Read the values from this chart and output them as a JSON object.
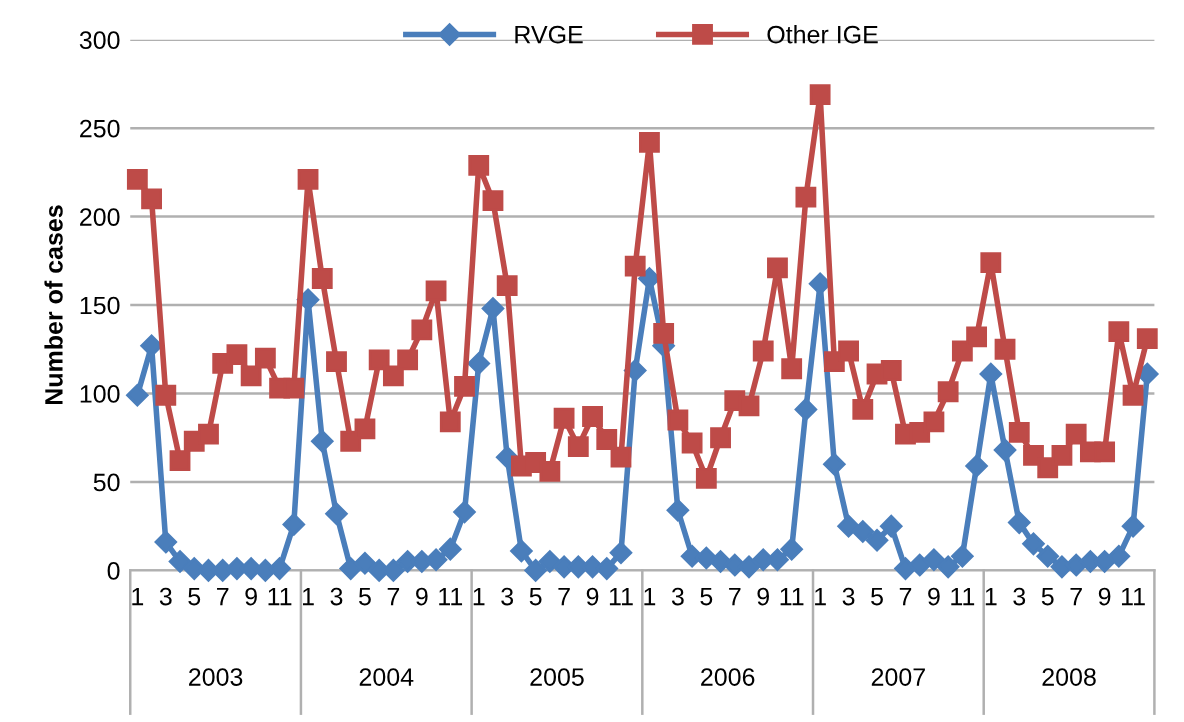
{
  "chart_data": {
    "type": "line",
    "ylabel": "Number of cases",
    "categories": [
      "1",
      null,
      "3",
      null,
      "5",
      null,
      "7",
      null,
      "9",
      null,
      "11",
      null,
      "1",
      null,
      "3",
      null,
      "5",
      null,
      "7",
      null,
      "9",
      null,
      "11",
      null,
      "1",
      null,
      "3",
      null,
      "5",
      null,
      "7",
      null,
      "9",
      null,
      "11",
      null,
      "1",
      null,
      "3",
      null,
      "5",
      null,
      "7",
      null,
      "9",
      null,
      "11",
      null,
      "1",
      null,
      "3",
      null,
      "5",
      null,
      "7",
      null,
      "9",
      null,
      "11",
      null,
      "1",
      null,
      "3",
      null,
      "5",
      null,
      "7",
      null,
      "9",
      null,
      "11",
      null
    ],
    "annotations": [
      "2003",
      "2004",
      "2005",
      "2006",
      "2007",
      "2008"
    ],
    "series": [
      {
        "name": "RVGE",
        "color": "#4a7ebb",
        "marker": "diamond",
        "values": [
          99,
          127,
          16,
          5,
          1,
          0,
          0,
          1,
          1,
          0,
          1,
          26,
          153,
          73,
          32,
          1,
          4,
          0,
          0,
          5,
          5,
          6,
          12,
          33,
          117,
          148,
          64,
          11,
          0,
          5,
          2,
          2,
          2,
          1,
          10,
          113,
          165,
          127,
          34,
          8,
          7,
          5,
          3,
          2,
          6,
          6,
          12,
          91,
          162,
          60,
          25,
          22,
          17,
          25,
          1,
          3,
          6,
          2,
          8,
          59,
          111,
          68,
          27,
          15,
          8,
          2,
          3,
          5,
          5,
          8,
          25,
          111
        ]
      },
      {
        "name": "Other IGE",
        "color": "#be4b48",
        "marker": "square",
        "values": [
          221,
          210,
          99,
          62,
          73,
          77,
          117,
          122,
          110,
          120,
          103,
          103,
          221,
          165,
          118,
          73,
          80,
          119,
          110,
          119,
          136,
          158,
          84,
          104,
          229,
          209,
          161,
          59,
          61,
          56,
          86,
          70,
          87,
          74,
          64,
          172,
          242,
          134,
          85,
          72,
          52,
          75,
          96,
          93,
          124,
          171,
          114,
          211,
          269,
          118,
          124,
          91,
          111,
          113,
          77,
          78,
          84,
          101,
          124,
          132,
          174,
          125,
          78,
          65,
          58,
          65,
          77,
          67,
          67,
          135,
          99,
          131
        ]
      }
    ],
    "ylim": [
      0,
      300
    ],
    "yticks": [
      0,
      50,
      100,
      150,
      200,
      250,
      300
    ],
    "grid": "y",
    "legend": "top"
  }
}
